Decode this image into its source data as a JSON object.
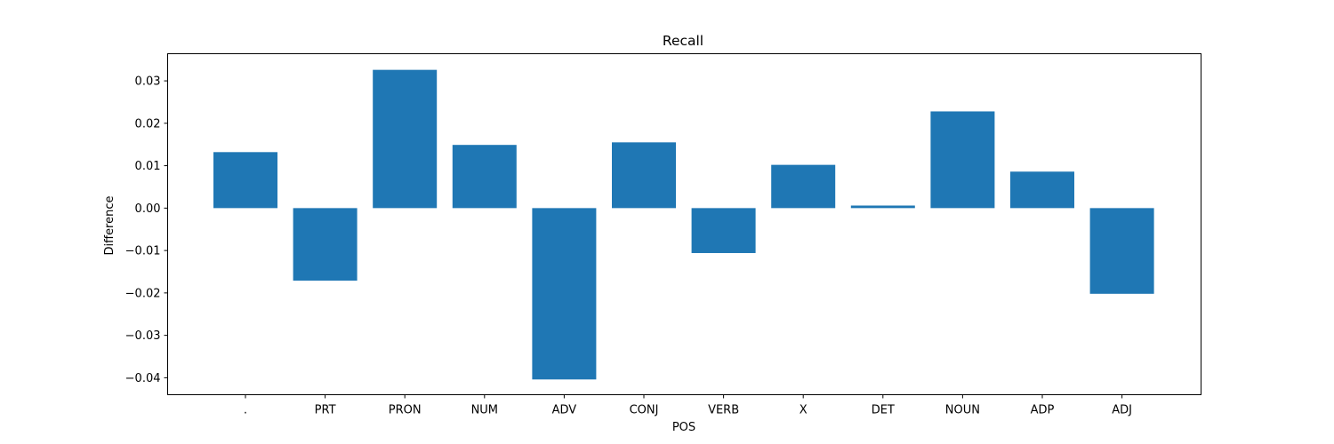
{
  "chart_data": {
    "type": "bar",
    "title": "Recall",
    "xlabel": "POS",
    "ylabel": "Difference",
    "categories": [
      ".",
      "PRT",
      "PRON",
      "NUM",
      "ADV",
      "CONJ",
      "VERB",
      "X",
      "DET",
      "NOUN",
      "ADP",
      "ADJ"
    ],
    "values": [
      0.0132,
      -0.0171,
      0.0326,
      0.0149,
      -0.0404,
      0.0155,
      -0.0106,
      0.0102,
      0.0006,
      0.0228,
      0.0086,
      -0.0202
    ],
    "ylim": [
      -0.044,
      0.0364
    ],
    "yticks": [
      -0.04,
      -0.03,
      -0.02,
      -0.01,
      0.0,
      0.01,
      0.02,
      0.03
    ],
    "ytick_labels": [
      "−0.04",
      "−0.03",
      "−0.02",
      "−0.01",
      "0.00",
      "0.01",
      "0.02",
      "0.03"
    ],
    "bar_color": "#1f77b4",
    "grid": false,
    "legend": null
  }
}
